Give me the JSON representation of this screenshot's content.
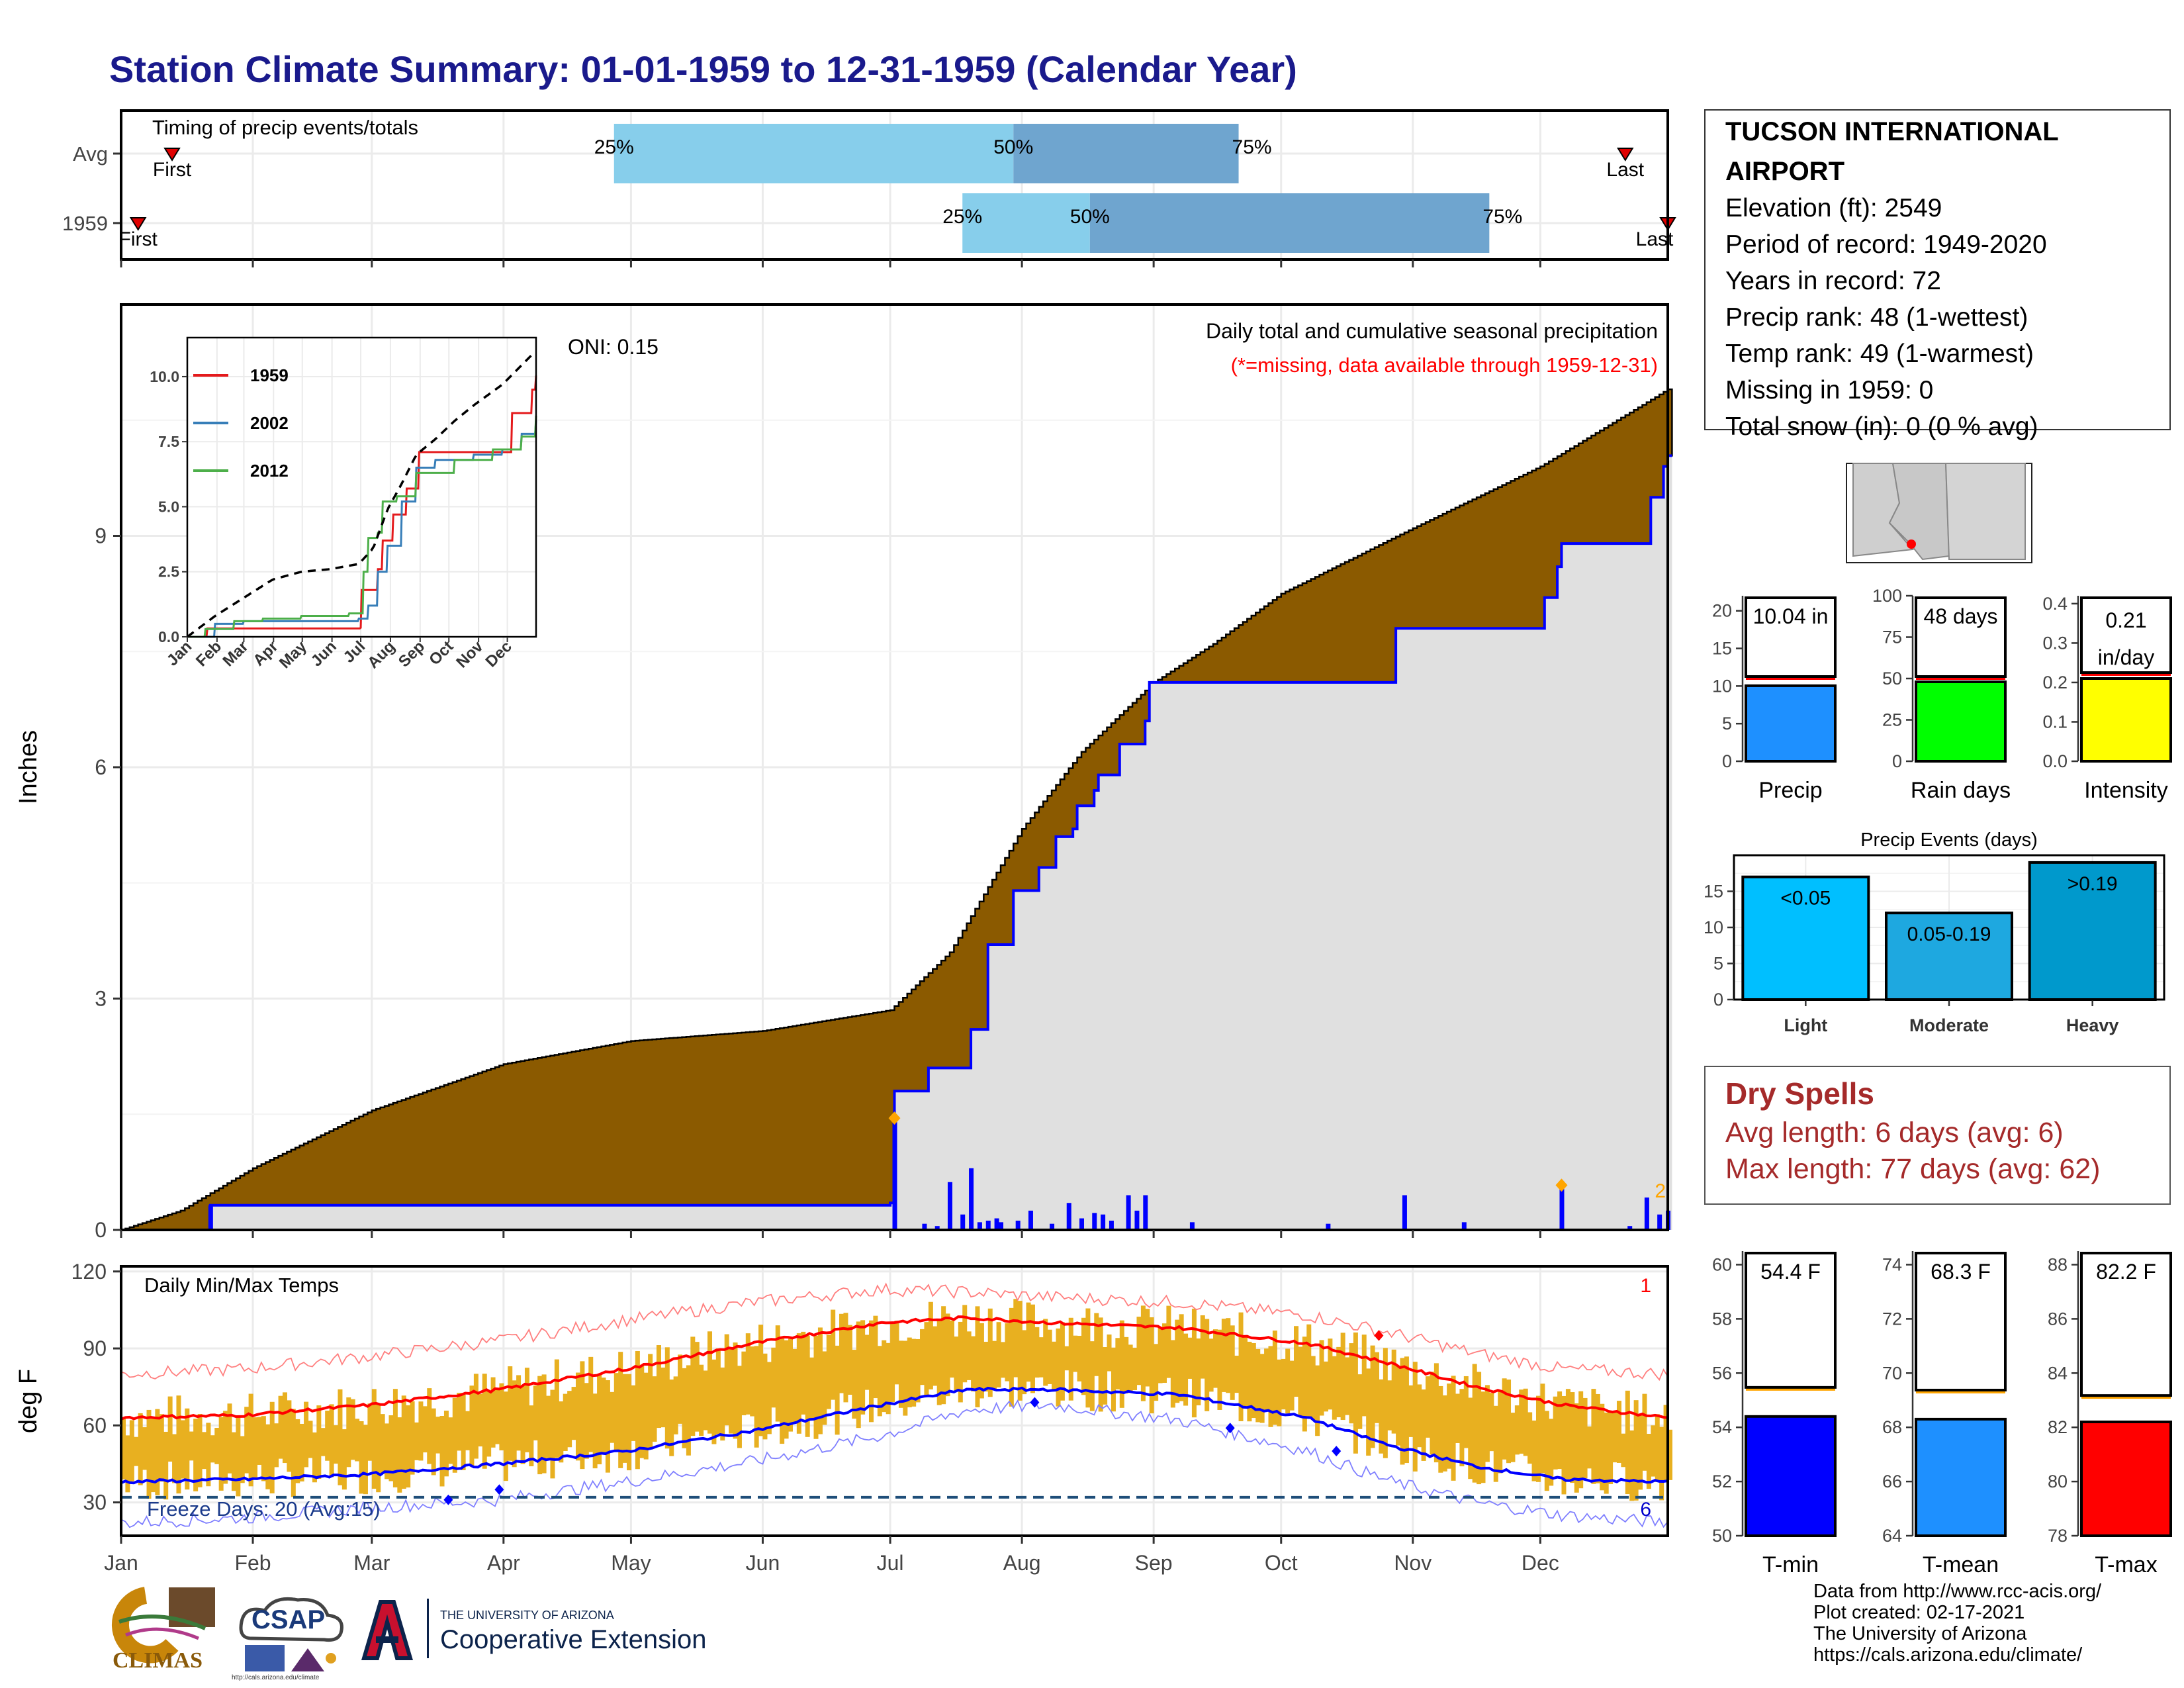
{
  "page_title": "Station Climate Summary: 01-01-1959 to 12-31-1959 (Calendar Year)",
  "station": {
    "name_line1": "TUCSON INTERNATIONAL",
    "name_line2": "AIRPORT",
    "elevation": "Elevation (ft): 2549",
    "period": "Period of record: 1949-2020",
    "years": "Years in record: 72",
    "precip_rank": "Precip rank: 48 (1-wettest)",
    "temp_rank": "Temp rank: 49 (1-warmest)",
    "missing": "Missing in 1959: 0",
    "snow": "Total snow (in): 0 (0 % avg)"
  },
  "dry_spells": {
    "title": "Dry Spells",
    "avg": "Avg length: 6 days (avg: 6)",
    "max": "Max length: 77 days (avg: 62)"
  },
  "credits": {
    "l1": "Data from http://www.rcc-acis.org/",
    "l2": "Plot created: 02-17-2021",
    "l3": "The University of Arizona",
    "l4": "https://cals.arizona.edu/climate/"
  },
  "logos": {
    "climas": "CLIMAS",
    "csap": "CSAP",
    "csap_url": "http://cals.arizona.edu/climate",
    "ua_small": "THE UNIVERSITY OF ARIZONA",
    "ua_big": "Cooperative Extension"
  },
  "colors": {
    "light_blue": "#87ceeb",
    "mid_blue": "#6fa5cf",
    "brown": "#8b5a00",
    "obs_blue": "#0000ff",
    "temp_fill": "#e8b020",
    "red": "#ff0000",
    "orange": "#ffa500"
  },
  "chart_data": [
    {
      "id": "timing",
      "type": "bar",
      "title": "Timing of precip events/totals",
      "rows": [
        {
          "label": "Avg",
          "q25": "Apr 27",
          "q50": "Jul 30",
          "q75": "Sep 21",
          "first_label": "First",
          "last_label": "Last",
          "first": "Jan 13",
          "last": "Dec 21"
        },
        {
          "label": "1959",
          "q25": "Jul 18",
          "q50": "Aug 17",
          "q75": "Nov 19",
          "first_label": "First",
          "last_label": "Last",
          "first": "Jan 5",
          "last": "Dec 31"
        }
      ],
      "pct_labels": [
        "25%",
        "50%",
        "75%"
      ]
    },
    {
      "id": "cumulative",
      "type": "area",
      "title": "Daily total and cumulative seasonal precipitation",
      "subtitle": "(*=missing, data available through 1959-12-31)",
      "oni": "ONI: 0.15",
      "ylabel": "Inches",
      "ylim": [
        0,
        12
      ],
      "yticks": [
        0,
        3,
        6,
        9
      ],
      "month_labels": [
        "Jan",
        "Feb",
        "Mar",
        "Apr",
        "May",
        "Jun",
        "Jul",
        "Aug",
        "Sep",
        "Oct",
        "Nov",
        "Dec"
      ],
      "avg_cumulative": {
        "doy": [
          1,
          15,
          32,
          60,
          91,
          121,
          152,
          182,
          196,
          213,
          227,
          244,
          258,
          274,
          305,
          335,
          365
        ],
        "in": [
          0,
          0.25,
          0.8,
          1.55,
          2.15,
          2.45,
          2.58,
          2.85,
          3.6,
          5.2,
          6.2,
          7.1,
          7.6,
          8.25,
          9.1,
          9.9,
          10.9
        ]
      },
      "obs_cumulative": {
        "doy": [
          1,
          21,
          22,
          182,
          183,
          190,
          191,
          200,
          201,
          204,
          205,
          210,
          211,
          216,
          217,
          220,
          221,
          225,
          226,
          230,
          231,
          236,
          242,
          243,
          300,
          301,
          335,
          336,
          339,
          340,
          360,
          361,
          364,
          365
        ],
        "in": [
          0,
          0,
          0.32,
          0.35,
          1.8,
          1.8,
          2.1,
          2.1,
          2.6,
          2.6,
          3.7,
          3.7,
          4.4,
          4.4,
          4.7,
          4.7,
          5.1,
          5.2,
          5.5,
          5.7,
          5.9,
          6.3,
          6.6,
          7.1,
          7.1,
          7.8,
          7.8,
          8.2,
          8.6,
          8.9,
          8.9,
          9.5,
          9.9,
          10.04
        ]
      },
      "daily_bars": {
        "doy": [
          22,
          183,
          190,
          193,
          196,
          199,
          201,
          203,
          205,
          207,
          208,
          212,
          215,
          220,
          224,
          227,
          230,
          232,
          234,
          238,
          240,
          242,
          253,
          285,
          303,
          317,
          340,
          356,
          360,
          363,
          365
        ],
        "in": [
          0.32,
          1.45,
          0.08,
          0.05,
          0.62,
          0.2,
          0.8,
          0.1,
          0.12,
          0.15,
          0.1,
          0.12,
          0.25,
          0.08,
          0.35,
          0.15,
          0.22,
          0.2,
          0.12,
          0.45,
          0.25,
          0.45,
          0.1,
          0.08,
          0.45,
          0.1,
          0.58,
          0.05,
          0.42,
          0.2,
          0.25
        ]
      },
      "annotations": [
        {
          "label": "2",
          "doy": 362
        }
      ]
    },
    {
      "id": "inset",
      "type": "line",
      "ylim": [
        0,
        11.5
      ],
      "yticks": [
        0.0,
        2.5,
        5.0,
        7.5,
        10.0
      ],
      "month_labels": [
        "Jan",
        "Feb",
        "Mar",
        "Apr",
        "May",
        "Jun",
        "Jul",
        "Aug",
        "Sep",
        "Oct",
        "Nov",
        "Dec"
      ],
      "series": [
        {
          "name": "1959",
          "color": "#e41a1c",
          "doy": [
            1,
            22,
            182,
            183,
            200,
            205,
            216,
            230,
            243,
            300,
            340,
            361,
            365
          ],
          "in": [
            0,
            0.32,
            0.35,
            1.8,
            2.6,
            3.7,
            4.7,
            5.7,
            7.1,
            7.1,
            8.6,
            9.5,
            10.04
          ]
        },
        {
          "name": "2002",
          "color": "#377eb8",
          "doy": [
            1,
            30,
            60,
            90,
            120,
            180,
            190,
            200,
            210,
            225,
            240,
            260,
            300,
            330,
            350,
            365
          ],
          "in": [
            0,
            0.5,
            0.6,
            0.6,
            0.6,
            0.7,
            1.2,
            2.5,
            3.5,
            5.2,
            6.5,
            6.8,
            7.0,
            7.2,
            7.8,
            8.3
          ]
        },
        {
          "name": "2012",
          "color": "#4daf4a",
          "doy": [
            1,
            20,
            50,
            80,
            120,
            170,
            185,
            190,
            200,
            205,
            220,
            240,
            280,
            320,
            350,
            365
          ],
          "in": [
            0,
            0.3,
            0.6,
            0.7,
            0.8,
            0.9,
            2.5,
            3.8,
            4.0,
            5.2,
            5.4,
            6.3,
            6.8,
            7.2,
            7.7,
            8.5
          ]
        }
      ],
      "avg": {
        "doy": [
          1,
          30,
          60,
          90,
          120,
          150,
          180,
          195,
          210,
          225,
          240,
          260,
          280,
          300,
          330,
          365
        ],
        "in": [
          0,
          0.8,
          1.5,
          2.2,
          2.5,
          2.6,
          2.8,
          3.4,
          4.9,
          5.9,
          7.0,
          7.6,
          8.3,
          8.9,
          9.7,
          11.0
        ]
      }
    },
    {
      "id": "temps",
      "type": "line",
      "title": "Daily Min/Max Temps",
      "ylabel": "deg F",
      "ylim": [
        17,
        122
      ],
      "yticks": [
        30,
        60,
        90,
        120
      ],
      "freeze_line": 32,
      "freeze_label": "Freeze Days: 20 (Avg:15)",
      "right_top_label": "1",
      "right_bottom_label": "6",
      "avg_max_curve": {
        "doy": [
          1,
          30,
          60,
          90,
          120,
          150,
          180,
          200,
          220,
          250,
          280,
          300,
          320,
          340,
          365
        ],
        "f": [
          63,
          64,
          68,
          74,
          82,
          92,
          100,
          102,
          100,
          98,
          92,
          84,
          75,
          68,
          63
        ]
      },
      "avg_min_curve": {
        "doy": [
          1,
          30,
          60,
          90,
          120,
          150,
          180,
          200,
          220,
          250,
          280,
          300,
          320,
          340,
          365
        ],
        "f": [
          38,
          39,
          41,
          45,
          50,
          58,
          68,
          74,
          74,
          72,
          63,
          52,
          44,
          39,
          38
        ]
      },
      "rec_max_curve": {
        "doy": [
          1,
          30,
          60,
          90,
          120,
          150,
          180,
          200,
          220,
          250,
          280,
          300,
          320,
          340,
          365
        ],
        "f": [
          80,
          82,
          87,
          93,
          101,
          108,
          113,
          112,
          110,
          108,
          103,
          96,
          88,
          82,
          80
        ]
      },
      "rec_min_curve": {
        "doy": [
          1,
          30,
          60,
          90,
          120,
          150,
          180,
          200,
          220,
          250,
          280,
          300,
          320,
          340,
          365
        ],
        "f": [
          22,
          24,
          28,
          31,
          38,
          46,
          56,
          66,
          68,
          62,
          50,
          38,
          30,
          25,
          22
        ]
      }
    },
    {
      "id": "precip_compare",
      "type": "bar",
      "panels": [
        {
          "name": "Precip",
          "value": 10.04,
          "avg": 11.0,
          "label": "10.04 in",
          "ylim": [
            0,
            22
          ],
          "yticks": [
            0,
            5,
            10,
            15,
            20
          ],
          "color": "#1e90ff"
        },
        {
          "name": "Rain days",
          "value": 48,
          "avg": 50,
          "label": "48 days",
          "ylim": [
            0,
            100
          ],
          "yticks": [
            0,
            25,
            50,
            75,
            100
          ],
          "color": "#00ff00"
        },
        {
          "name": "Intensity",
          "value": 0.21,
          "avg": 0.22,
          "label": "0.21",
          "label2": "in/day",
          "ylim": [
            0,
            0.42
          ],
          "yticks": [
            "0.0",
            "0.1",
            "0.2",
            "0.3",
            "0.4"
          ],
          "color": "#ffff00"
        }
      ]
    },
    {
      "id": "precip_events",
      "type": "bar",
      "title": "Precip Events (days)",
      "categories": [
        "Light",
        "Moderate",
        "Heavy"
      ],
      "values": [
        17,
        12,
        19
      ],
      "value_labels": [
        "<0.05",
        "0.05-0.19",
        ">0.19"
      ],
      "ylim": [
        0,
        20
      ],
      "yticks": [
        0,
        5,
        10,
        15
      ],
      "colors": [
        "#00bfff",
        "#1ea8e0",
        "#0099cc"
      ]
    },
    {
      "id": "temp_compare",
      "type": "bar",
      "panels": [
        {
          "name": "T-min",
          "value": 54.4,
          "avg": 55.4,
          "label": "54.4 F",
          "ylim": [
            50,
            60.5
          ],
          "yticks": [
            50,
            52,
            54,
            56,
            58,
            60
          ],
          "color": "#0000ff"
        },
        {
          "name": "T-mean",
          "value": 68.3,
          "avg": 69.3,
          "label": "68.3 F",
          "ylim": [
            64,
            74.5
          ],
          "yticks": [
            64,
            66,
            68,
            70,
            72,
            74
          ],
          "color": "#1e90ff"
        },
        {
          "name": "T-max",
          "value": 82.2,
          "avg": 83.1,
          "label": "82.2 F",
          "ylim": [
            78,
            88.5
          ],
          "yticks": [
            78,
            80,
            82,
            84,
            86,
            88
          ],
          "color": "#ff0000"
        }
      ]
    }
  ]
}
